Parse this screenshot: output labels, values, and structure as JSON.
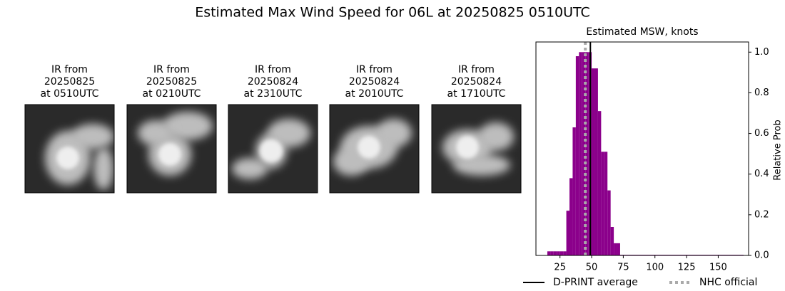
{
  "title": "Estimated Max Wind Speed for 06L at 20250825 0510UTC",
  "panels": [
    {
      "lines": [
        "IR from",
        "20250825",
        "at 0510UTC"
      ]
    },
    {
      "lines": [
        "IR from",
        "20250825",
        "at 0210UTC"
      ]
    },
    {
      "lines": [
        "IR from",
        "20250824",
        "at 2310UTC"
      ]
    },
    {
      "lines": [
        "IR from",
        "20250824",
        "at 2010UTC"
      ]
    },
    {
      "lines": [
        "IR from",
        "20250824",
        "at 1710UTC"
      ]
    }
  ],
  "chart_data": {
    "type": "histogram",
    "title": "Estimated MSW, knots",
    "ylabel": "Relative Prob",
    "bins": [
      15,
      17.5,
      20,
      22.5,
      25,
      27.5,
      30,
      32.5,
      35,
      37.5,
      40,
      42.5,
      45,
      47.5,
      50,
      52.5,
      55,
      57.5,
      60,
      62.5,
      65,
      67.5,
      70,
      72.5,
      170
    ],
    "values": [
      0.02,
      0.02,
      0.02,
      0.02,
      0.02,
      0.02,
      0.22,
      0.38,
      0.63,
      0.98,
      1.0,
      1.0,
      1.0,
      1.0,
      0.92,
      0.92,
      0.71,
      0.51,
      0.51,
      0.32,
      0.14,
      0.06,
      0.06,
      0.003
    ],
    "color": "#8b008b",
    "xlim": [
      6,
      174
    ],
    "xticks": [
      25,
      50,
      75,
      100,
      125,
      150
    ],
    "ylim": [
      0,
      1.05
    ],
    "yticks": [
      {
        "value": 0,
        "label": "0.0"
      },
      {
        "value": 0.2,
        "label": "0.2"
      },
      {
        "value": 0.4,
        "label": "0.4"
      },
      {
        "value": 0.6,
        "label": "0.6"
      },
      {
        "value": 0.8,
        "label": "0.8"
      },
      {
        "value": 1.0,
        "label": "1.0"
      }
    ],
    "reference_lines": [
      {
        "name": "D-PRINT average",
        "x": 49,
        "color": "#000000",
        "style": "solid"
      },
      {
        "name": "NHC official",
        "x": 45,
        "color": "#aaaaaa",
        "style": "dotted"
      }
    ]
  }
}
